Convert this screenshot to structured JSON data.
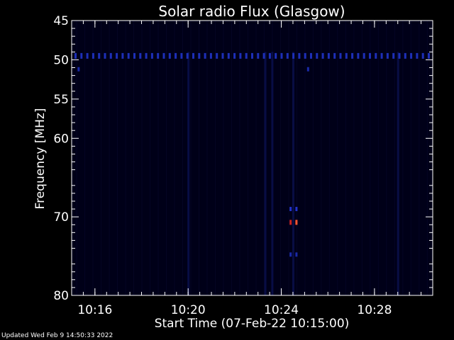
{
  "chart_data": {
    "type": "heatmap",
    "title": "Solar radio Flux (Glasgow)",
    "ylabel": "Frequency [MHz]",
    "xlabel": "Start Time (07-Feb-22 10:15:00)",
    "x_range_minutes": [
      0,
      15.5
    ],
    "y_range_mhz": [
      45,
      80
    ],
    "y_ticks": [
      {
        "value": 45,
        "label": "45"
      },
      {
        "value": 50,
        "label": "50"
      },
      {
        "value": 55,
        "label": "55"
      },
      {
        "value": 60,
        "label": "60"
      },
      {
        "value": 70,
        "label": "70"
      },
      {
        "value": 80,
        "label": "80"
      }
    ],
    "x_ticks": [
      {
        "value": 1,
        "label": "10:16"
      },
      {
        "value": 5,
        "label": "10:20"
      },
      {
        "value": 9,
        "label": "10:24"
      },
      {
        "value": 13,
        "label": "10:28"
      }
    ],
    "x_minor_step_minutes": 0.5,
    "interference_band_mhz": 49.5,
    "background_color": "#000018",
    "features": [
      {
        "t": 9.65,
        "f": 70.7,
        "color": "#ff5533",
        "intensity": "high"
      },
      {
        "t": 9.4,
        "f": 70.7,
        "color": "#cc2222",
        "intensity": "high"
      },
      {
        "t": 9.4,
        "f": 69.0,
        "color": "#2233cc",
        "intensity": "low"
      },
      {
        "t": 9.65,
        "f": 69.0,
        "color": "#2233cc",
        "intensity": "low"
      },
      {
        "t": 9.4,
        "f": 74.8,
        "color": "#1a2aa8",
        "intensity": "low"
      },
      {
        "t": 9.65,
        "f": 74.8,
        "color": "#1a2aa8",
        "intensity": "low"
      },
      {
        "t": 0.3,
        "f": 51.2,
        "color": "#1a2aa8",
        "intensity": "low"
      },
      {
        "t": 10.15,
        "f": 51.2,
        "color": "#1a2aa8",
        "intensity": "low"
      }
    ],
    "vertical_streaks_minutes": [
      5.0,
      8.3,
      8.6,
      9.5,
      14.0
    ]
  },
  "footer": {
    "updated_text": "Updated Wed Feb  9 14:50:33 2022"
  }
}
